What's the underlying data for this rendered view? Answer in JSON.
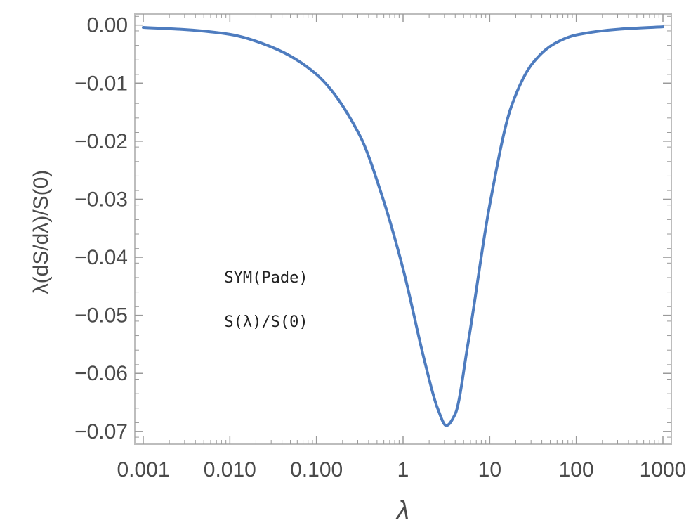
{
  "chart_data": {
    "type": "line",
    "xlabel": "λ",
    "ylabel": "λ(dS/dλ)/S(0)",
    "x_scale": "log",
    "xlim": [
      0.001,
      1000
    ],
    "ylim": [
      -0.0722,
      0.0019
    ],
    "x_ticks": [
      0.001,
      0.01,
      0.1,
      1,
      10,
      100,
      1000
    ],
    "x_tick_labels": [
      "0.001",
      "0.010",
      "0.100",
      "1",
      "10",
      "100",
      "1000"
    ],
    "y_ticks": [
      0.0,
      -0.01,
      -0.02,
      -0.03,
      -0.04,
      -0.05,
      -0.06,
      -0.07
    ],
    "y_tick_labels": [
      "0.00",
      "−0.01",
      "−0.02",
      "−0.03",
      "−0.04",
      "−0.05",
      "−0.06",
      "−0.07"
    ],
    "grid": false,
    "annotations": [
      "SYM(Pade)",
      "S(λ)/S(0)"
    ],
    "series": [
      {
        "color": "#4e7cbf",
        "x": [
          0.001,
          0.00316,
          0.01,
          0.0316,
          0.1,
          0.316,
          0.56,
          1.0,
          1.78,
          2.5,
          3.16,
          4.0,
          5.6,
          10,
          17.8,
          31.6,
          56,
          100,
          316,
          1000
        ],
        "y": [
          -0.0004,
          -0.0008,
          -0.0016,
          -0.0039,
          -0.0085,
          -0.019,
          -0.029,
          -0.042,
          -0.058,
          -0.066,
          -0.069,
          -0.067,
          -0.055,
          -0.031,
          -0.014,
          -0.0065,
          -0.0032,
          -0.0017,
          -0.0007,
          -0.0003
        ]
      }
    ]
  }
}
